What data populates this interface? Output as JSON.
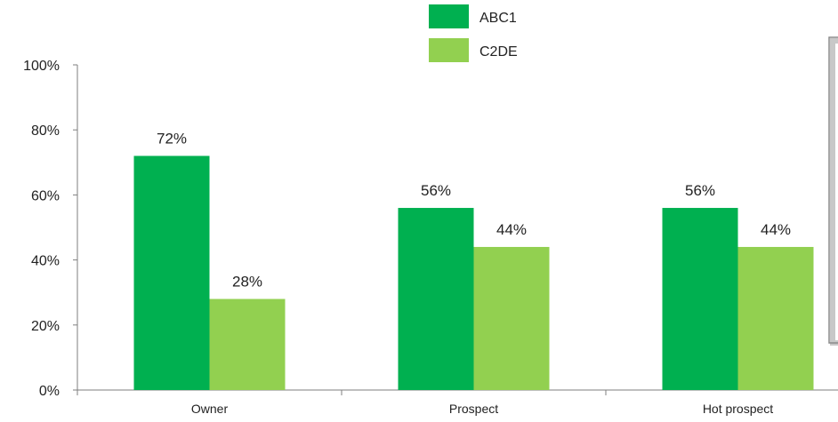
{
  "chart_data": {
    "type": "bar",
    "categories": [
      "Owner",
      "Prospect",
      "Hot prospect"
    ],
    "series": [
      {
        "name": "ABC1",
        "values": [
          72,
          56,
          56
        ],
        "labels": [
          "72%",
          "56%",
          "56%"
        ],
        "color": "#00b050"
      },
      {
        "name": "C2DE",
        "values": [
          28,
          44,
          44
        ],
        "labels": [
          "28%",
          "44%",
          "44%"
        ],
        "color": "#92d050"
      }
    ],
    "ylim": [
      0,
      100
    ],
    "yticks": [
      0,
      20,
      40,
      60,
      80,
      100
    ],
    "ytick_labels": [
      "0%",
      "20%",
      "40%",
      "60%",
      "80%",
      "100%"
    ],
    "title": "",
    "xlabel": "",
    "ylabel": "",
    "grid": false,
    "legend_position": "top"
  }
}
